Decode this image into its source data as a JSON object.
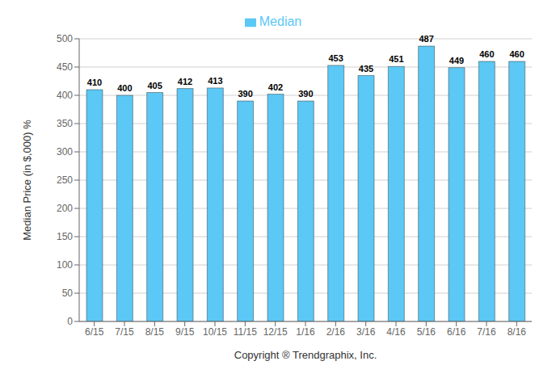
{
  "chart_data": {
    "type": "bar",
    "xlabel": "Copyright ® Trendgraphix, Inc.",
    "ylabel": "Median Price (in $,000) %",
    "categories": [
      "6/15",
      "7/15",
      "8/15",
      "9/15",
      "10/15",
      "11/15",
      "12/15",
      "1/16",
      "2/16",
      "3/16",
      "4/16",
      "5/16",
      "6/16",
      "7/16",
      "8/16"
    ],
    "series": [
      {
        "name": "Median",
        "color": "#5BC8F5",
        "values": [
          410,
          400,
          405,
          412,
          413,
          390,
          402,
          390,
          453,
          435,
          451,
          487,
          449,
          460,
          460
        ]
      }
    ],
    "ylim": [
      0,
      500
    ],
    "yticks": [
      0,
      50,
      100,
      150,
      200,
      250,
      300,
      350,
      400,
      450,
      500
    ],
    "grid": true,
    "legend": "top",
    "data_labels": true
  }
}
